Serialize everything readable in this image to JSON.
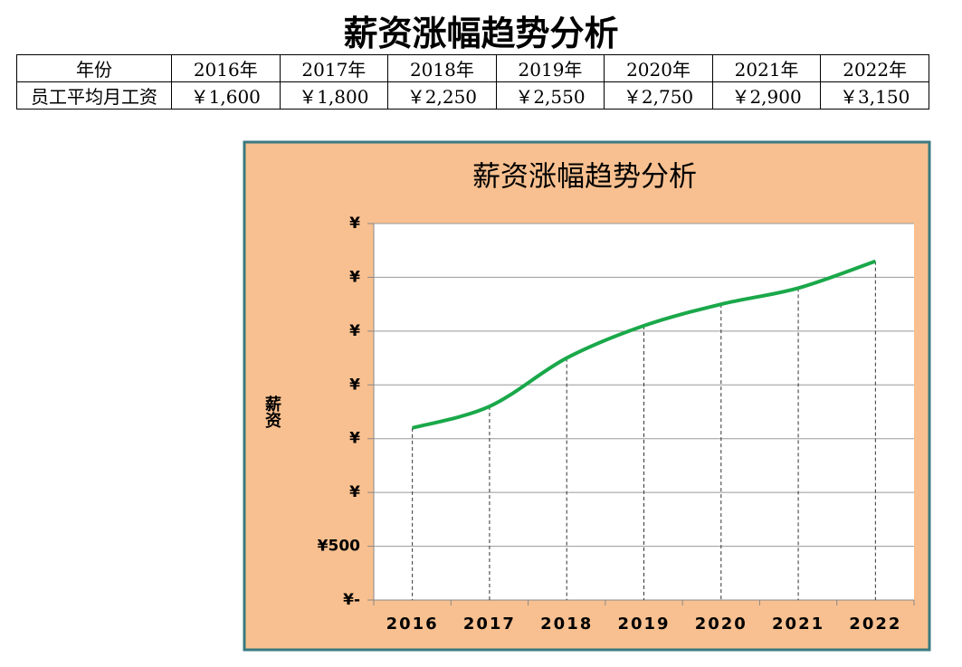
{
  "title": "薪资涨幅趋势分析",
  "table": {
    "header": [
      "年份",
      "2016年",
      "2017年",
      "2018年",
      "2019年",
      "2020年",
      "2021年",
      "2022年"
    ],
    "rows": [
      [
        "员工平均月工资",
        "￥1,600",
        "￥1,800",
        "￥2,250",
        "￥2,550",
        "￥2,750",
        "￥2,900",
        "￥3,150"
      ]
    ]
  },
  "chart_data": {
    "type": "line",
    "title": "薪资涨幅趋势分析",
    "y_label": "薪资",
    "categories": [
      "2016",
      "2017",
      "2018",
      "2019",
      "2020",
      "2021",
      "2022"
    ],
    "series": [
      {
        "color": "#1aa84a",
        "values": [
          1600,
          1800,
          2250,
          2550,
          2750,
          2900,
          3150
        ]
      }
    ],
    "ylim": [
      0,
      3500
    ],
    "yticks": [
      {
        "value": 0,
        "label": "¥-"
      },
      {
        "value": 500,
        "label": "¥500"
      },
      {
        "value": 1000,
        "label": "¥"
      },
      {
        "value": 1500,
        "label": "¥"
      },
      {
        "value": 2000,
        "label": "¥"
      },
      {
        "value": 2500,
        "label": "¥"
      },
      {
        "value": 3000,
        "label": "¥"
      },
      {
        "value": 3500,
        "label": "¥"
      }
    ],
    "grid": true,
    "drop_lines": true,
    "smooth": true
  }
}
